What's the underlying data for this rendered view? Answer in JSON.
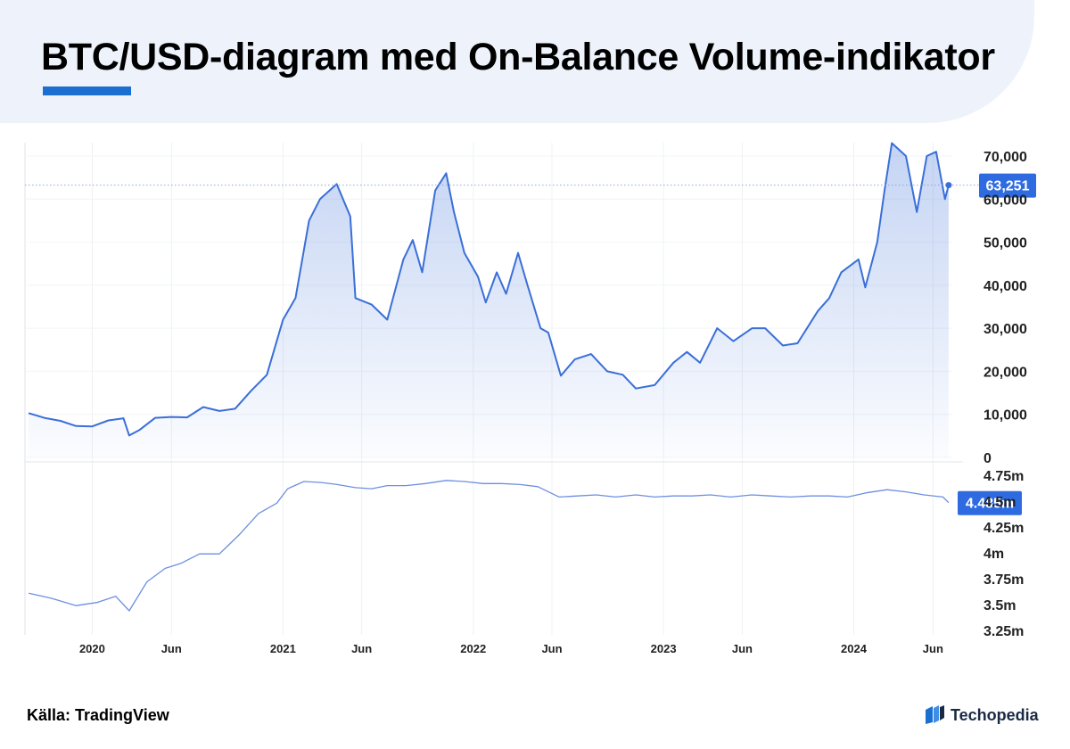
{
  "header": {
    "title": "BTC/USD-diagram med On-Balance Volume-indikator"
  },
  "footer": {
    "source": "Källa: TradingView",
    "brand": "Techopedia",
    "brand_icon": "techopedia-logo-icon"
  },
  "colors": {
    "price_line": "#3a6fd8",
    "obv_line": "#6d8fe0",
    "badge": "#2f6be0",
    "header_band": "#eef3fb",
    "accent": "#1a6fd0"
  },
  "chart_data": [
    {
      "type": "area",
      "title": "",
      "series": [
        {
          "name": "",
          "x": [
            "2019-09-01",
            "2019-10-01",
            "2019-11-01",
            "2019-12-01",
            "2020-01-01",
            "2020-02-01",
            "2020-03-01",
            "2020-03-12",
            "2020-04-01",
            "2020-05-01",
            "2020-06-01",
            "2020-07-01",
            "2020-08-01",
            "2020-09-01",
            "2020-10-01",
            "2020-11-01",
            "2020-12-01",
            "2021-01-01",
            "2021-01-25",
            "2021-02-20",
            "2021-03-13",
            "2021-04-14",
            "2021-05-10",
            "2021-05-20",
            "2021-06-20",
            "2021-07-20",
            "2021-08-20",
            "2021-09-07",
            "2021-09-25",
            "2021-10-20",
            "2021-11-10",
            "2021-11-25",
            "2021-12-15",
            "2022-01-10",
            "2022-01-25",
            "2022-02-15",
            "2022-03-05",
            "2022-03-28",
            "2022-04-15",
            "2022-05-10",
            "2022-05-25",
            "2022-06-18",
            "2022-07-15",
            "2022-08-15",
            "2022-09-15",
            "2022-10-15",
            "2022-11-09",
            "2022-12-15",
            "2023-01-20",
            "2023-02-15",
            "2023-03-12",
            "2023-04-14",
            "2023-05-15",
            "2023-06-20",
            "2023-07-15",
            "2023-08-18",
            "2023-09-15",
            "2023-10-24",
            "2023-11-15",
            "2023-12-08",
            "2024-01-10",
            "2024-01-23",
            "2024-02-15",
            "2024-02-29",
            "2024-03-14",
            "2024-04-10",
            "2024-05-01",
            "2024-05-20",
            "2024-06-07",
            "2024-06-24",
            "2024-07-01"
          ],
          "values": [
            10300,
            9200,
            8500,
            7300,
            7200,
            8600,
            9100,
            5100,
            6400,
            9200,
            9400,
            9300,
            11700,
            10800,
            11300,
            15500,
            19200,
            32000,
            37000,
            55000,
            60000,
            63500,
            56000,
            37000,
            35500,
            32000,
            46000,
            50500,
            43000,
            62000,
            66000,
            57000,
            47500,
            42000,
            36000,
            43000,
            38000,
            47500,
            40000,
            30000,
            29000,
            19000,
            22800,
            24000,
            20000,
            19200,
            16000,
            16800,
            22000,
            24500,
            22000,
            30000,
            27000,
            30000,
            30000,
            26000,
            26500,
            34000,
            37000,
            43000,
            46000,
            39500,
            50000,
            62000,
            73000,
            70000,
            57000,
            70000,
            71000,
            60000,
            63251
          ]
        }
      ],
      "ylim": [
        0,
        75000
      ],
      "y_ticks": [
        "0",
        "10,000",
        "20,000",
        "30,000",
        "40,000",
        "50,000",
        "60,000",
        "70,000"
      ],
      "current_value_label": "63,251"
    },
    {
      "type": "line",
      "title": "",
      "series": [
        {
          "name": "",
          "x": [
            "2019-09-01",
            "2019-10-15",
            "2019-12-01",
            "2020-01-10",
            "2020-02-15",
            "2020-03-12",
            "2020-04-15",
            "2020-05-20",
            "2020-06-20",
            "2020-07-25",
            "2020-09-01",
            "2020-10-10",
            "2020-11-15",
            "2020-12-20",
            "2021-01-10",
            "2021-02-10",
            "2021-03-15",
            "2021-04-15",
            "2021-05-20",
            "2021-06-20",
            "2021-07-20",
            "2021-08-25",
            "2021-10-01",
            "2021-11-10",
            "2021-12-15",
            "2022-01-20",
            "2022-02-25",
            "2022-04-01",
            "2022-05-05",
            "2022-06-15",
            "2022-07-20",
            "2022-08-25",
            "2022-10-01",
            "2022-11-09",
            "2022-12-15",
            "2023-01-20",
            "2023-02-25",
            "2023-04-01",
            "2023-05-10",
            "2023-06-20",
            "2023-07-25",
            "2023-09-01",
            "2023-10-10",
            "2023-11-15",
            "2023-12-20",
            "2024-01-25",
            "2024-03-05",
            "2024-04-10",
            "2024-05-15",
            "2024-06-20",
            "2024-07-01"
          ],
          "values": [
            3610,
            3560,
            3490,
            3520,
            3580,
            3440,
            3720,
            3850,
            3900,
            3990,
            3990,
            4180,
            4380,
            4480,
            4620,
            4690,
            4680,
            4660,
            4630,
            4620,
            4650,
            4650,
            4670,
            4700,
            4690,
            4670,
            4670,
            4660,
            4640,
            4540,
            4550,
            4560,
            4540,
            4560,
            4540,
            4550,
            4550,
            4560,
            4540,
            4560,
            4550,
            4540,
            4550,
            4550,
            4540,
            4580,
            4610,
            4590,
            4560,
            4540,
            4485
          ]
        }
      ],
      "ylim": [
        3250,
        4750
      ],
      "y_ticks": [
        "3.25m",
        "3.5m",
        "3.75m",
        "4m",
        "4.25m",
        "4.5m",
        "4.75m"
      ],
      "current_value_label": "4.485m"
    }
  ],
  "x_axis": {
    "ticks": [
      {
        "date": "2020-01-01",
        "label": "2020"
      },
      {
        "date": "2020-06-01",
        "label": "Jun"
      },
      {
        "date": "2021-01-01",
        "label": "2021"
      },
      {
        "date": "2021-06-01",
        "label": "Jun"
      },
      {
        "date": "2022-01-01",
        "label": "2022"
      },
      {
        "date": "2022-06-01",
        "label": "Jun"
      },
      {
        "date": "2023-01-01",
        "label": "2023"
      },
      {
        "date": "2023-06-01",
        "label": "Jun"
      },
      {
        "date": "2024-01-01",
        "label": "2024"
      },
      {
        "date": "2024-06-01",
        "label": "Jun"
      }
    ],
    "range": [
      "2019-08-25",
      "2024-07-08"
    ]
  }
}
